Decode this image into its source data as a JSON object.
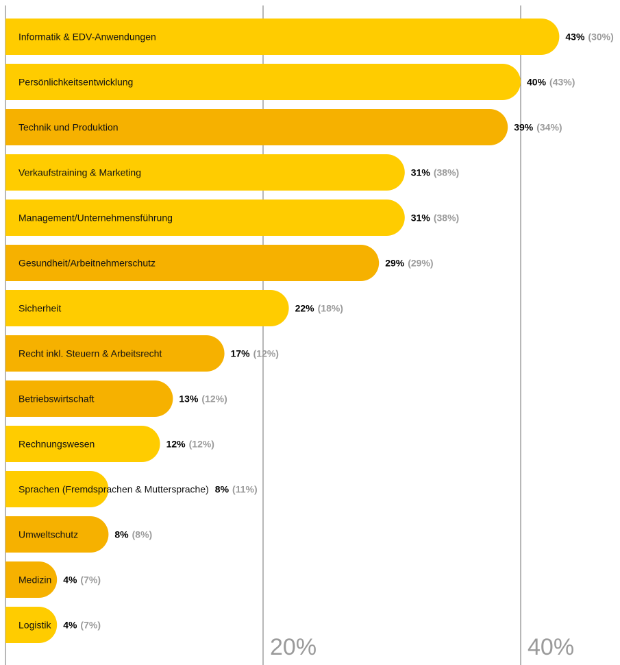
{
  "chart_data": {
    "type": "bar",
    "orientation": "horizontal",
    "categories": [
      "Informatik & EDV-Anwendungen",
      "Persönlichkeitsentwicklung",
      "Technik und Produktion",
      "Verkaufstraining & Marketing",
      "Management/Unternehmensführung",
      "Gesundheit/Arbeitnehmerschutz",
      "Sicherheit",
      "Recht inkl. Steuern & Arbeitsrecht",
      "Betriebswirtschaft",
      "Rechnungswesen",
      "Sprachen (Fremdsprachen & Muttersprache)",
      "Umweltschutz",
      "Medizin",
      "Logistik"
    ],
    "series": [
      {
        "values": [
          43,
          40,
          39,
          31,
          31,
          29,
          22,
          17,
          13,
          12,
          8,
          8,
          4,
          4
        ]
      },
      {
        "values": [
          30,
          43,
          34,
          38,
          38,
          29,
          18,
          12,
          12,
          12,
          11,
          8,
          7,
          7
        ]
      }
    ],
    "labels_current": [
      "43%",
      "40%",
      "39%",
      "31%",
      "31%",
      "29%",
      "22%",
      "17%",
      "13%",
      "12%",
      "8%",
      "8%",
      "4%",
      "4%"
    ],
    "labels_previous": [
      "(30%)",
      "(43%)",
      "(34%)",
      "(38%)",
      "(38%)",
      "(29%)",
      "(18%)",
      "(12%)",
      "(12%)",
      "(12%)",
      "(11%)",
      "(8%)",
      "(7%)",
      "(7%)"
    ],
    "bar_colors": [
      "#FFCC00",
      "#FFCC00",
      "#F6B100",
      "#FFCC00",
      "#FFCC00",
      "#F6B100",
      "#FFCC00",
      "#F6B100",
      "#F6B100",
      "#FFCC00",
      "#FFCC00",
      "#F6B100",
      "#F6B100",
      "#FFCC00"
    ],
    "xticks": [
      20,
      40
    ],
    "xtick_labels": [
      "20%",
      "40%"
    ],
    "xlim": [
      0,
      43
    ],
    "grid": true
  }
}
